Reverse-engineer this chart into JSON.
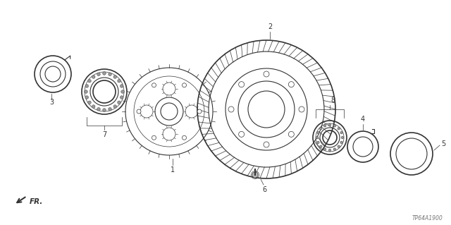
{
  "background_color": "#ffffff",
  "line_color": "#333333",
  "label_color": "#000000",
  "parts": {
    "part3_label": "3",
    "part7_label": "7",
    "part1_label": "1",
    "part2_label": "2",
    "part8_label": "8",
    "part4_label": "4",
    "part5_label": "5",
    "part6_label": "6"
  },
  "watermark": "TP64A1900",
  "fr_label": "FR.",
  "fig_width": 6.4,
  "fig_height": 3.19,
  "dpi": 100
}
